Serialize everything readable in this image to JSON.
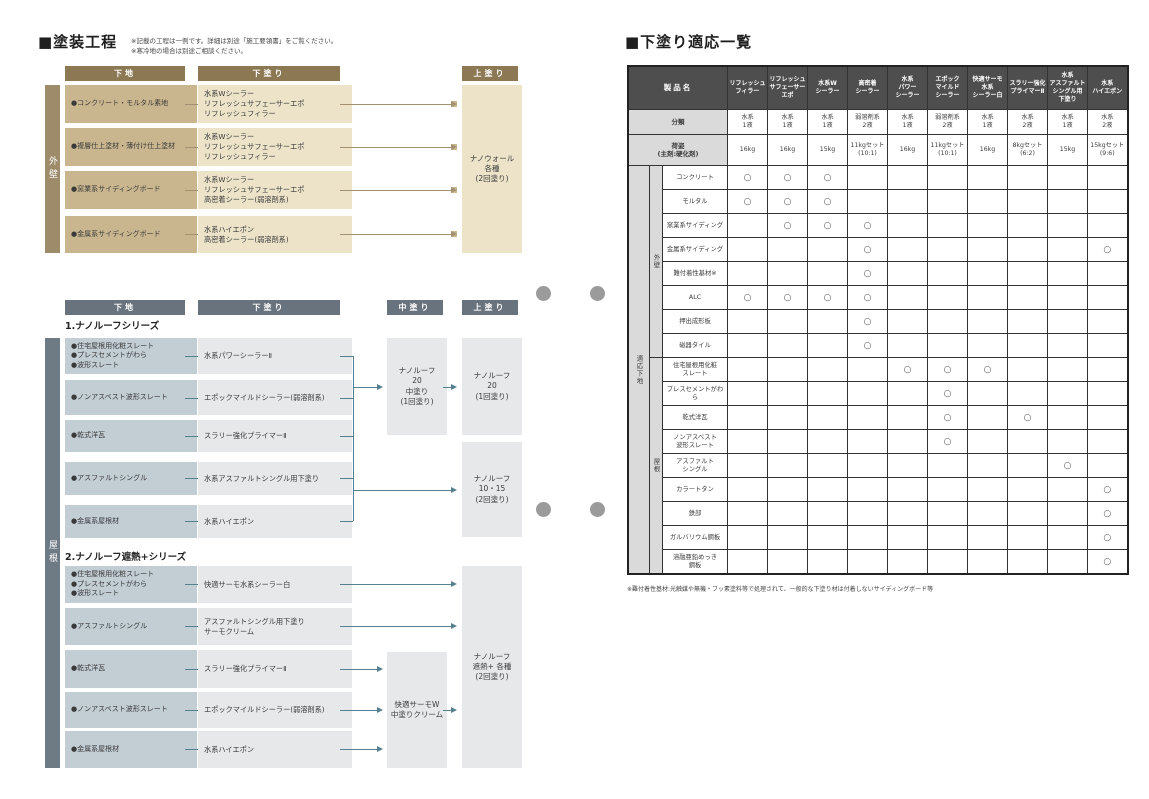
{
  "left": {
    "title": "■塗装工程",
    "notes": "※記載の工程は一例です。詳細は別途「施工要領書」をご覧ください。\n※寒冷地の場合は別途ご相談ください。",
    "wall": {
      "side_label": "外壁",
      "headers": {
        "base": "下地",
        "under": "下塗り",
        "top": "上塗り"
      },
      "rows": [
        {
          "base": "●コンクリート・モルタル素地",
          "under": "水系Wシーラー\nリフレッシュサフェーサーエポ\nリフレッシュフィラー"
        },
        {
          "base": "●複層仕上塗材・薄付け仕上塗材",
          "under": "水系Wシーラー\nリフレッシュサフェーサーエポ\nリフレッシュフィラー"
        },
        {
          "base": "●窯業系サイディングボード",
          "under": "水系Wシーラー\nリフレッシュサフェーサーエポ\n高密着シーラー(弱溶剤系)"
        },
        {
          "base": "●金属系サイディングボード",
          "under": "水系ハイエポン\n高密着シーラー(弱溶剤系)"
        }
      ],
      "topcoat": "ナノウォール\n各種\n(2回塗り)"
    },
    "roof": {
      "side_label": "屋根",
      "headers": {
        "base": "下地",
        "under": "下塗り",
        "mid": "中塗り",
        "top": "上塗り"
      },
      "series1": {
        "title": "1.ナノルーフシリーズ",
        "rows": [
          {
            "base": "●住宅屋根用化粧スレート\n●プレスセメントがわら\n●波形スレート",
            "under": "水系パワーシーラーⅡ"
          },
          {
            "base": "●ノンアスベスト波形スレート",
            "under": "エポックマイルドシーラー(弱溶剤系)"
          },
          {
            "base": "●乾式洋瓦",
            "under": "スラリー強化プライマーⅡ"
          },
          {
            "base": "●アスファルトシングル",
            "under": "水系アスファルトシングル用下塗り"
          },
          {
            "base": "●金属系屋根材",
            "under": "水系ハイエポン"
          }
        ],
        "mid": "ナノルーフ\n20\n中塗り\n(1回塗り)",
        "top1": "ナノルーフ\n20\n(1回塗り)",
        "top2": "ナノルーフ\n10・15\n(2回塗り)"
      },
      "series2": {
        "title": "2.ナノルーフ遮熱+シリーズ",
        "rows": [
          {
            "base": "●住宅屋根用化粧スレート\n●プレスセメントがわら\n●波形スレート",
            "under": "快適サーモ水系シーラー白"
          },
          {
            "base": "●アスファルトシングル",
            "under": "アスファルトシングル用下塗り\nサーモクリーム"
          },
          {
            "base": "●乾式洋瓦",
            "under": "スラリー強化プライマーⅡ"
          },
          {
            "base": "●ノンアスベスト波形スレート",
            "under": "エポックマイルドシーラー(弱溶剤系)"
          },
          {
            "base": "●金属系屋根材",
            "under": "水系ハイエポン"
          }
        ],
        "mid": "快適サーモW\n中塗りクリーム",
        "top": "ナノルーフ\n遮熱+ 各種\n(2回塗り)"
      }
    }
  },
  "right": {
    "title": "■下塗り適応一覧",
    "table": {
      "corner": "製品名",
      "products": [
        "リフレッシュ\nフィラー",
        "リフレッシュ\nサフェーサー\nエポ",
        "水系W\nシーラー",
        "高密着\nシーラー",
        "水系\nパワー\nシーラー",
        "エポック\nマイルド\nシーラー",
        "快適サーモ\n水系\nシーラー白",
        "スラリー強化\nプライマーⅡ",
        "水系\nアスファルト\nシングル用\n下塗り",
        "水系\nハイエポン"
      ],
      "class_label": "分類",
      "class_values": [
        "水系\n1液",
        "水系\n1液",
        "水系\n1液",
        "弱溶剤系\n2液",
        "水系\n1液",
        "弱溶剤系\n2液",
        "水系\n1液",
        "水系\n2液",
        "水系\n1液",
        "水系\n2液"
      ],
      "pack_label": "荷姿\n(主剤:硬化剤)",
      "pack_values": [
        "16kg",
        "16kg",
        "15kg",
        "11kgセット\n(10:1)",
        "16kg",
        "11kgセット\n(10:1)",
        "16kg",
        "8kgセット\n(6:2)",
        "15kg",
        "15kgセット\n(9:6)"
      ],
      "side_label": "適応下地",
      "circle": "○",
      "groups": [
        {
          "label": "外壁",
          "rows": [
            {
              "name": "コンクリート",
              "marks": [
                1,
                1,
                1,
                0,
                0,
                0,
                0,
                0,
                0,
                0
              ]
            },
            {
              "name": "モルタル",
              "marks": [
                1,
                1,
                1,
                0,
                0,
                0,
                0,
                0,
                0,
                0
              ]
            },
            {
              "name": "窯業系サイディング",
              "marks": [
                0,
                1,
                1,
                1,
                0,
                0,
                0,
                0,
                0,
                0
              ]
            },
            {
              "name": "金属系サイディング",
              "marks": [
                0,
                0,
                0,
                1,
                0,
                0,
                0,
                0,
                0,
                1
              ]
            },
            {
              "name": "難付着性基材※",
              "marks": [
                0,
                0,
                0,
                1,
                0,
                0,
                0,
                0,
                0,
                0
              ]
            },
            {
              "name": "ALC",
              "marks": [
                1,
                1,
                1,
                1,
                0,
                0,
                0,
                0,
                0,
                0
              ]
            },
            {
              "name": "押出成形板",
              "marks": [
                0,
                0,
                0,
                1,
                0,
                0,
                0,
                0,
                0,
                0
              ]
            },
            {
              "name": "磁器タイル",
              "marks": [
                0,
                0,
                0,
                1,
                0,
                0,
                0,
                0,
                0,
                0
              ]
            }
          ]
        },
        {
          "label": "屋根",
          "rows": [
            {
              "name": "住宅屋根用化粧\nスレート",
              "marks": [
                0,
                0,
                0,
                0,
                1,
                1,
                1,
                0,
                0,
                0
              ]
            },
            {
              "name": "プレスセメントがわら",
              "marks": [
                0,
                0,
                0,
                0,
                0,
                1,
                0,
                0,
                0,
                0
              ]
            },
            {
              "name": "乾式洋瓦",
              "marks": [
                0,
                0,
                0,
                0,
                0,
                1,
                0,
                1,
                0,
                0
              ]
            },
            {
              "name": "ノンアスベスト\n波形スレート",
              "marks": [
                0,
                0,
                0,
                0,
                0,
                1,
                0,
                0,
                0,
                0
              ]
            },
            {
              "name": "アスファルト\nシングル",
              "marks": [
                0,
                0,
                0,
                0,
                0,
                0,
                0,
                0,
                1,
                0
              ]
            },
            {
              "name": "カラートタン",
              "marks": [
                0,
                0,
                0,
                0,
                0,
                0,
                0,
                0,
                0,
                1
              ]
            },
            {
              "name": "鉄部",
              "marks": [
                0,
                0,
                0,
                0,
                0,
                0,
                0,
                0,
                0,
                1
              ]
            },
            {
              "name": "ガルバリウム鋼板",
              "marks": [
                0,
                0,
                0,
                0,
                0,
                0,
                0,
                0,
                0,
                1
              ]
            },
            {
              "name": "溶融亜鉛めっき\n鋼板",
              "marks": [
                0,
                0,
                0,
                0,
                0,
                0,
                0,
                0,
                0,
                1
              ]
            }
          ]
        }
      ]
    },
    "footnote": "※難付着性基材:光触媒や無機・フッ素塗料等で処理されて、一般的な下塗り材は付着しないサイディングボード等"
  }
}
